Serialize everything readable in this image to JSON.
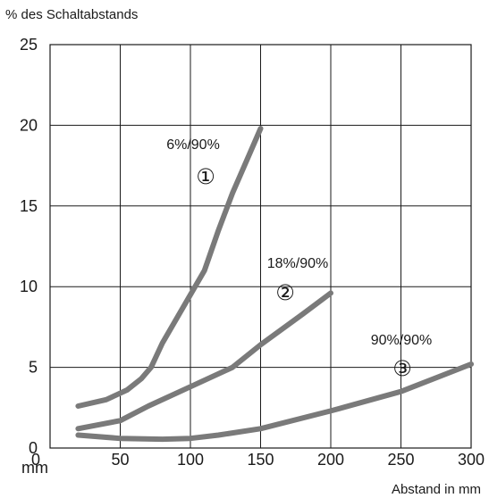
{
  "chart_data": {
    "type": "line",
    "ylabel": "% des Schaltabstands",
    "xlabel": "Abstand in mm",
    "x_unit_label": "mm",
    "xlim": [
      0,
      300
    ],
    "ylim": [
      0,
      25
    ],
    "x_ticks": [
      {
        "value": 0,
        "label": "0"
      },
      {
        "value": 50,
        "label": "50"
      },
      {
        "value": 100,
        "label": "100"
      },
      {
        "value": 150,
        "label": "150"
      },
      {
        "value": 200,
        "label": "200"
      },
      {
        "value": 250,
        "label": "250"
      },
      {
        "value": 300,
        "label": "300"
      }
    ],
    "y_ticks": [
      {
        "value": 0,
        "label": "0"
      },
      {
        "value": 5,
        "label": "5"
      },
      {
        "value": 10,
        "label": "10"
      },
      {
        "value": 15,
        "label": "15"
      },
      {
        "value": 20,
        "label": "20"
      },
      {
        "value": 25,
        "label": "25"
      }
    ],
    "grid": true,
    "line_color": "#7a7a7a",
    "series": [
      {
        "marker": "①",
        "label": "6%/90%",
        "points": [
          [
            20,
            2.6
          ],
          [
            40,
            3.0
          ],
          [
            55,
            3.6
          ],
          [
            65,
            4.3
          ],
          [
            72,
            5.0
          ],
          [
            80,
            6.5
          ],
          [
            90,
            8.0
          ],
          [
            100,
            9.5
          ],
          [
            110,
            11.0
          ],
          [
            120,
            13.5
          ],
          [
            130,
            15.8
          ],
          [
            140,
            17.8
          ],
          [
            150,
            19.8
          ]
        ]
      },
      {
        "marker": "②",
        "label": "18%/90%",
        "points": [
          [
            20,
            1.2
          ],
          [
            50,
            1.7
          ],
          [
            70,
            2.6
          ],
          [
            100,
            3.8
          ],
          [
            130,
            5.0
          ],
          [
            150,
            6.4
          ],
          [
            180,
            8.3
          ],
          [
            200,
            9.6
          ]
        ]
      },
      {
        "marker": "③",
        "label": "90%/90%",
        "points": [
          [
            20,
            0.8
          ],
          [
            50,
            0.6
          ],
          [
            80,
            0.55
          ],
          [
            100,
            0.6
          ],
          [
            120,
            0.8
          ],
          [
            150,
            1.2
          ],
          [
            200,
            2.3
          ],
          [
            250,
            3.5
          ],
          [
            300,
            5.2
          ]
        ]
      }
    ]
  }
}
